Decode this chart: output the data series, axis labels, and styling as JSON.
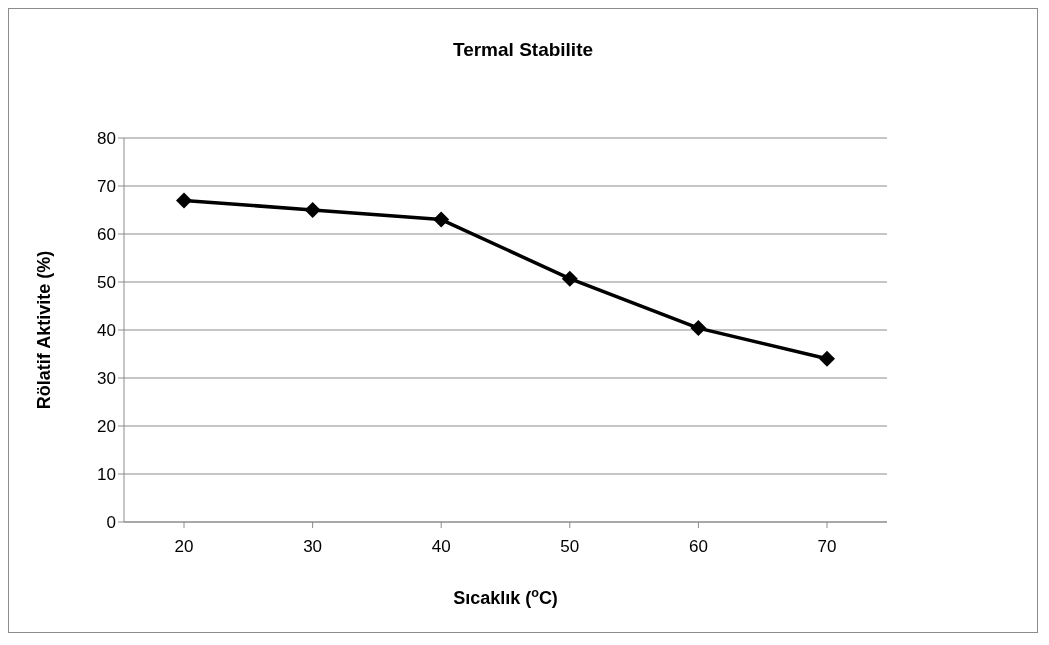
{
  "chart_data": {
    "type": "line",
    "title": "Termal Stabilite",
    "xlabel": "Sıcaklık ($^{o}$C)",
    "ylabel": "Rölatif Aktivite (%)",
    "categories": [
      "20",
      "30",
      "40",
      "50",
      "60",
      "70"
    ],
    "series": [
      {
        "color": "#000000",
        "values": [
          67,
          65,
          63,
          50.7,
          40.4,
          34
        ]
      }
    ],
    "ylim": [
      0,
      80
    ],
    "yticks": [
      0,
      10,
      20,
      30,
      40,
      50,
      60,
      70,
      80
    ],
    "grid": "y",
    "marker": "diamond",
    "line_style": "solid"
  }
}
